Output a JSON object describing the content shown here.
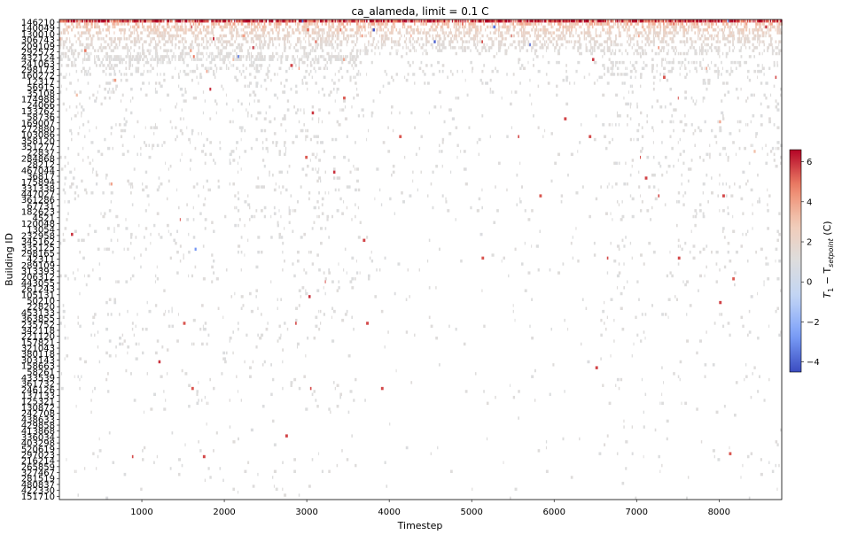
{
  "chart_data": {
    "type": "heatmap",
    "title": "ca_alameda, limit = 0.1 C",
    "xlabel": "Timestep",
    "ylabel": "Building ID",
    "xlim": [
      0,
      8760
    ],
    "x_ticks": [
      1000,
      2000,
      3000,
      4000,
      5000,
      6000,
      7000,
      8000
    ],
    "colorbar": {
      "label_main": "T",
      "label_sub1": "1",
      "label_mid": " − T",
      "label_sub2": "setpoint",
      "label_unit": " (C)",
      "range": [
        -4.5,
        6.6
      ],
      "ticks": [
        -4,
        -2,
        0,
        2,
        4,
        6
      ],
      "colormap": "coolwarm",
      "colors": [
        "#3b4cc0",
        "#7b9ff9",
        "#c0d4f5",
        "#dddddd",
        "#f2cbb7",
        "#ee8468",
        "#b40426"
      ]
    },
    "grid": false,
    "building_ids": [
      "146210",
      "140049",
      "130010",
      "306743",
      "209109",
      "292572",
      "432124",
      "241063",
      "298173",
      "160272",
      "12317",
      "56915",
      "35108",
      "174988",
      "24066",
      "133762",
      "58736",
      "169007",
      "272880",
      "103086",
      "358120",
      "351277",
      "22837",
      "284868",
      "28212",
      "467044",
      "36817",
      "175894",
      "331338",
      "447027",
      "361286",
      "67731",
      "182623",
      "4521",
      "120048",
      "13054",
      "232958",
      "345162",
      "335125",
      "298165",
      "42311",
      "289109",
      "313393",
      "206312",
      "443055",
      "261243",
      "105131",
      "50210",
      "22820",
      "453133",
      "363855",
      "235752",
      "342118",
      "221120",
      "157821",
      "321043",
      "380118",
      "303143",
      "158663",
      "58261",
      "433539",
      "361732",
      "246126",
      "137133",
      "125321",
      "130872",
      "242708",
      "438633",
      "429858",
      "413868",
      "336034",
      "403298",
      "520619",
      "297023",
      "216214",
      "265859",
      "327467",
      "281519",
      "480837",
      "422330",
      "151710"
    ],
    "rows_per_label": 2,
    "row_profiles": [
      [
        5.5,
        0.95,
        0,
        8760
      ],
      [
        2.5,
        0.55,
        0,
        8760
      ],
      [
        2.0,
        0.45,
        0,
        8760
      ],
      [
        1.5,
        0.45,
        0,
        8760
      ],
      [
        1.2,
        0.45,
        0,
        8760
      ],
      [
        1.0,
        0.4,
        0,
        8760
      ],
      [
        0.8,
        0.4,
        0,
        8760
      ],
      [
        0.6,
        0.4,
        0,
        8760
      ],
      [
        0.4,
        0.35,
        0,
        8760
      ],
      [
        0.3,
        0.35,
        0,
        8760
      ],
      [
        0.2,
        0.3,
        0,
        8760
      ],
      [
        0.2,
        0.3,
        0,
        8760
      ],
      [
        0.15,
        0.6,
        0,
        3600
      ],
      [
        0.1,
        0.55,
        0,
        3600
      ],
      [
        0.1,
        0.25,
        0,
        8760
      ],
      [
        0.1,
        0.22,
        0,
        8760
      ],
      [
        0.1,
        0.2,
        0,
        8760
      ],
      [
        0.05,
        0.18,
        0,
        8760
      ],
      [
        0.05,
        0.15,
        0,
        8760
      ],
      [
        0.05,
        0.12,
        0,
        8760
      ],
      [
        0.05,
        0.1,
        0,
        8760
      ],
      [
        0.05,
        0.08,
        0,
        8760
      ],
      [
        0.05,
        0.06,
        0,
        8760
      ]
    ]
  }
}
